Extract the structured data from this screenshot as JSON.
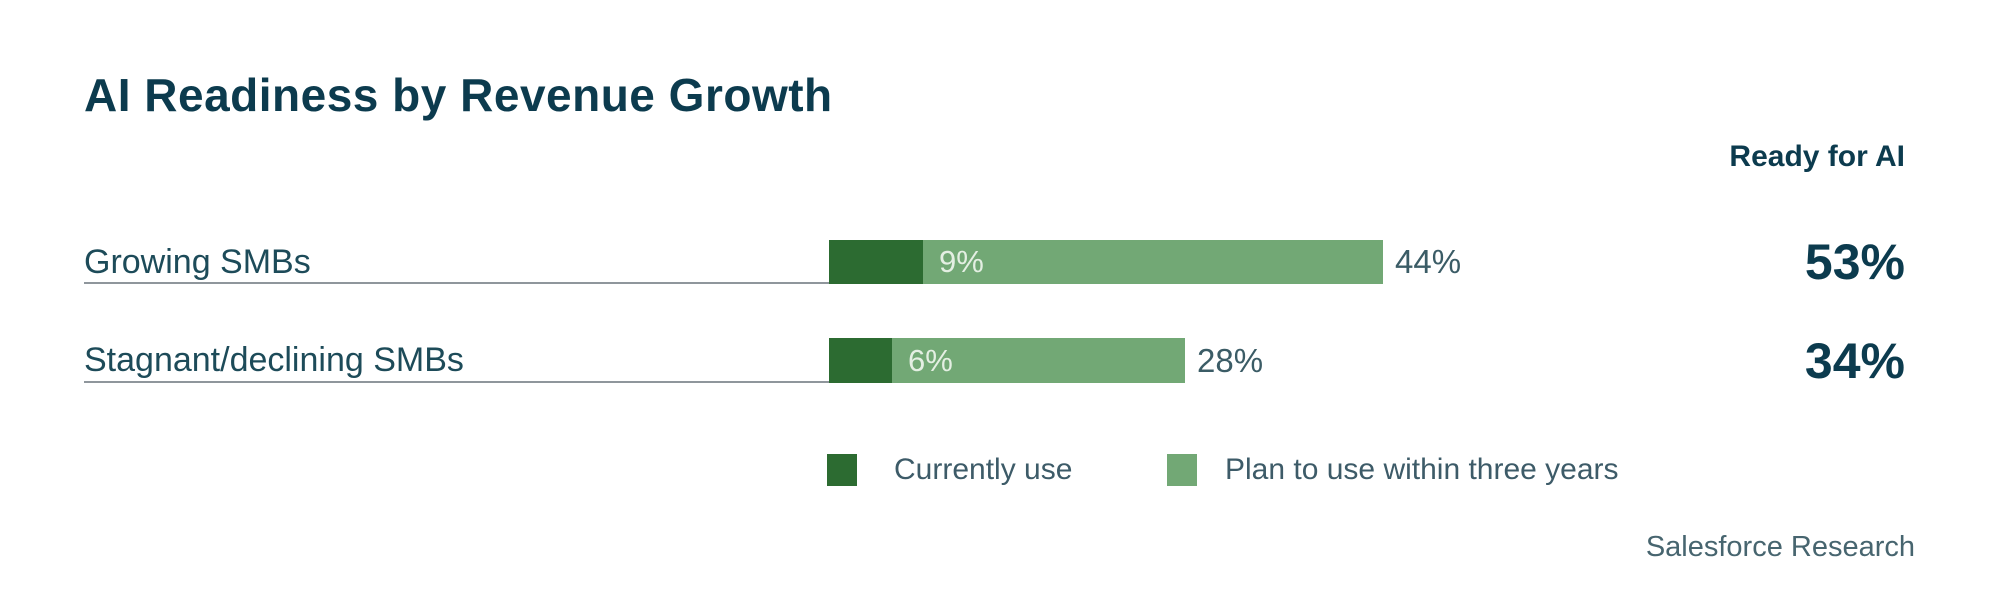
{
  "title": "AI Readiness by Revenue Growth",
  "ready_header": "Ready for AI",
  "source": "Salesforce Research",
  "colors": {
    "currently_use": "#2c6b31",
    "plan_to_use": "#72a875",
    "accent_teal": "#0c3b4e",
    "label_teal": "#1d4b59",
    "value_slate": "#3b5c66",
    "row_line_gray": "#8f969c"
  },
  "legend": {
    "items": [
      {
        "label": "Currently use",
        "color": "#2c6b31"
      },
      {
        "label": "Plan to use within three years",
        "color": "#72a875"
      }
    ]
  },
  "rows": [
    {
      "label": "Growing SMBs",
      "currently_use_pct": 9,
      "plan_to_use_pct": 44,
      "currently_use_label": "9%",
      "plan_to_use_label": "44%",
      "ready_label": "53%"
    },
    {
      "label": "Stagnant/declining SMBs",
      "currently_use_pct": 6,
      "plan_to_use_pct": 28,
      "currently_use_label": "6%",
      "plan_to_use_label": "28%",
      "ready_label": "34%"
    }
  ],
  "chart_data": {
    "type": "bar",
    "orientation": "horizontal",
    "stacked": true,
    "title": "AI Readiness by Revenue Growth",
    "categories": [
      "Growing SMBs",
      "Stagnant/declining SMBs"
    ],
    "series": [
      {
        "name": "Currently use",
        "values": [
          9,
          6
        ],
        "color": "#2c6b31"
      },
      {
        "name": "Plan to use within three years",
        "values": [
          44,
          28
        ],
        "color": "#72a875"
      }
    ],
    "totals_column": {
      "header": "Ready for AI",
      "values": [
        53,
        34
      ],
      "unit": "%"
    },
    "xlim": [
      0,
      55
    ],
    "grid": false,
    "legend_position": "bottom",
    "data_labels": "percent",
    "source": "Salesforce Research"
  }
}
